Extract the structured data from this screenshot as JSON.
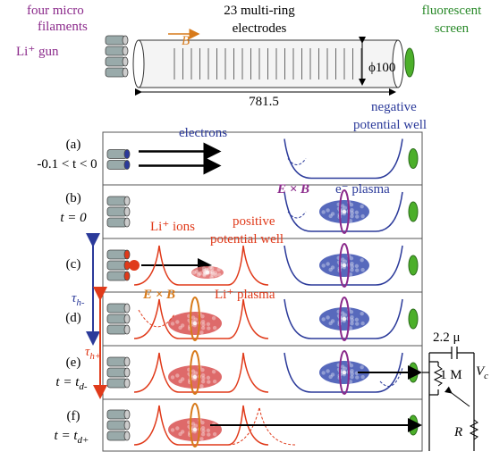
{
  "device": {
    "filaments": [
      "four micro",
      "filaments"
    ],
    "gun": "Li⁺ gun",
    "field": "B",
    "electrodes": [
      "23 multi-ring",
      "electrodes"
    ],
    "screen": [
      "fluorescent",
      "screen"
    ],
    "diameter": "ϕ100",
    "length": "781.5"
  },
  "panels": [
    {
      "label": "(a)",
      "time": "-0.1 < t < 0"
    },
    {
      "label": "(b)",
      "time": "t = 0"
    },
    {
      "label": "(c)"
    },
    {
      "label": "(d)"
    },
    {
      "label": "(e)",
      "time": "t = t",
      "time_sub": "d-"
    },
    {
      "label": "(f)",
      "time": "t = t",
      "time_sub": "d+"
    }
  ],
  "annotations": {
    "electrons": "electrons",
    "negative_well": [
      "negative",
      "potential well"
    ],
    "exb_electron": "E × B",
    "electron_plasma": "e⁻ plasma",
    "li_ions": "Li⁺ ions",
    "positive_well": [
      "positive",
      "potential well"
    ],
    "exb_ion": "E × B",
    "ion_plasma": "Li⁺ plasma",
    "tau_minus": {
      "symbol": "τ",
      "sub": "h-"
    },
    "tau_plus": {
      "symbol": "τ",
      "sub": "h+"
    }
  },
  "circuit": {
    "capacitor": "2.2 μ",
    "resistor": "1 M",
    "voltage": {
      "symbol": "V",
      "sub": "c"
    },
    "load": "R"
  }
}
